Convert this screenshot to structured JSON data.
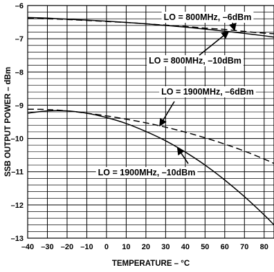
{
  "chart_data": {
    "type": "line",
    "title": "",
    "xlabel": "TEMPERATURE – °C",
    "ylabel": "SSB OUTPUT POWER – dBm",
    "xlim": [
      -40,
      85
    ],
    "ylim": [
      -13,
      -6
    ],
    "x_ticks": [
      -40,
      -30,
      -20,
      -10,
      0,
      10,
      20,
      30,
      40,
      50,
      60,
      70,
      80
    ],
    "x_tick_labels": [
      "–40",
      "–30",
      "–20",
      "–10",
      "0",
      "10",
      "20",
      "30",
      "40",
      "50",
      "60",
      "70",
      "80"
    ],
    "y_ticks": [
      -6,
      -7,
      -8,
      -9,
      -10,
      -11,
      -12,
      -13
    ],
    "y_tick_labels": [
      "–6",
      "–7",
      "–8",
      "–9",
      "–10",
      "–11",
      "–12",
      "–13"
    ],
    "grid": true,
    "series": [
      {
        "name": "LO = 800MHz, –6dBm",
        "style": "dashed",
        "x": [
          -40,
          -30,
          -20,
          -10,
          0,
          10,
          20,
          30,
          40,
          50,
          60,
          70,
          80,
          85
        ],
        "y": [
          -6.38,
          -6.4,
          -6.42,
          -6.45,
          -6.48,
          -6.51,
          -6.55,
          -6.59,
          -6.63,
          -6.68,
          -6.72,
          -6.78,
          -6.83,
          -6.85
        ]
      },
      {
        "name": "LO = 800MHz, –10dBm",
        "style": "solid",
        "x": [
          -40,
          -30,
          -20,
          -10,
          0,
          10,
          20,
          30,
          40,
          50,
          60,
          70,
          80,
          85
        ],
        "y": [
          -6.36,
          -6.38,
          -6.41,
          -6.44,
          -6.47,
          -6.51,
          -6.55,
          -6.6,
          -6.65,
          -6.71,
          -6.77,
          -6.84,
          -6.91,
          -6.95
        ]
      },
      {
        "name": "LO = 1900MHz, –6dBm",
        "style": "dashed",
        "x": [
          -40,
          -30,
          -20,
          -10,
          0,
          10,
          20,
          30,
          40,
          50,
          60,
          70,
          80,
          85
        ],
        "y": [
          -9.12,
          -9.13,
          -9.17,
          -9.24,
          -9.32,
          -9.42,
          -9.53,
          -9.66,
          -9.81,
          -9.98,
          -10.17,
          -10.38,
          -10.62,
          -10.75
        ]
      },
      {
        "name": "LO = 1900MHz, –10dBm",
        "style": "solid",
        "x": [
          -40,
          -30,
          -20,
          -10,
          0,
          10,
          20,
          30,
          40,
          50,
          60,
          70,
          80,
          85
        ],
        "y": [
          -9.24,
          -9.17,
          -9.17,
          -9.24,
          -9.37,
          -9.55,
          -9.79,
          -10.07,
          -10.41,
          -10.8,
          -11.25,
          -11.75,
          -12.3,
          -12.6
        ]
      }
    ],
    "annotations": [
      {
        "text": "LO = 800MHz, –6dBm",
        "series": 0
      },
      {
        "text": "LO = 800MHz, –10dBm",
        "series": 1
      },
      {
        "text": "LO = 1900MHz, –6dBm",
        "series": 2
      },
      {
        "text": "LO = 1900MHz, –10dBm",
        "series": 3
      }
    ]
  }
}
